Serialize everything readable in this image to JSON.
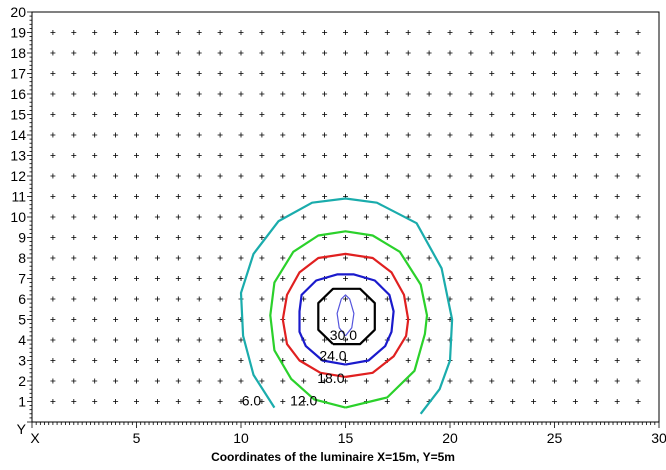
{
  "chart_data": {
    "type": "contour",
    "title": "",
    "xlabel": "Coordinates of the luminaire X=15m, Y=5m",
    "ylabel": "",
    "x_axis_name": "X",
    "y_axis_name": "Y",
    "xlim": [
      0,
      30
    ],
    "ylim": [
      0,
      20
    ],
    "x_ticks": [
      5,
      10,
      15,
      20,
      25,
      30
    ],
    "y_ticks": [
      1,
      2,
      3,
      4,
      5,
      6,
      7,
      8,
      9,
      10,
      11,
      12,
      13,
      14,
      15,
      16,
      17,
      18,
      19,
      20
    ],
    "grid": "cross markers at every 1 m",
    "luminaire": {
      "x": 15,
      "y": 5
    },
    "contours": [
      {
        "level": "6.0",
        "color": "#1aacac",
        "label_pos": {
          "x": 10.5,
          "y": 0.8
        },
        "points": [
          [
            18.6,
            0.4
          ],
          [
            19.5,
            1.6
          ],
          [
            20.0,
            3.0
          ],
          [
            20.1,
            5.0
          ],
          [
            19.6,
            7.5
          ],
          [
            18.4,
            9.7
          ],
          [
            16.5,
            10.7
          ],
          [
            15.0,
            10.9
          ],
          [
            13.4,
            10.7
          ],
          [
            11.8,
            9.8
          ],
          [
            10.6,
            8.2
          ],
          [
            10.0,
            6.3
          ],
          [
            10.1,
            4.2
          ],
          [
            10.6,
            2.3
          ],
          [
            11.6,
            0.7
          ]
        ]
      },
      {
        "level": "12.0",
        "color": "#2bd12b",
        "label_pos": {
          "x": 13.0,
          "y": 0.8
        },
        "points": [
          [
            15.0,
            0.7
          ],
          [
            17.0,
            1.2
          ],
          [
            18.3,
            2.5
          ],
          [
            18.8,
            4.3
          ],
          [
            18.9,
            5.2
          ],
          [
            18.6,
            6.7
          ],
          [
            17.6,
            8.3
          ],
          [
            16.3,
            9.1
          ],
          [
            15.0,
            9.3
          ],
          [
            13.7,
            9.1
          ],
          [
            12.5,
            8.3
          ],
          [
            11.6,
            6.8
          ],
          [
            11.4,
            5.2
          ],
          [
            11.6,
            3.5
          ],
          [
            12.4,
            2.1
          ],
          [
            13.5,
            1.1
          ],
          [
            15.0,
            0.7
          ]
        ]
      },
      {
        "level": "18.0",
        "color": "#e02020",
        "label_pos": {
          "x": 14.3,
          "y": 1.9
        },
        "points": [
          [
            15.0,
            2.2
          ],
          [
            16.3,
            2.4
          ],
          [
            17.3,
            3.2
          ],
          [
            17.9,
            4.2
          ],
          [
            18.0,
            5.0
          ],
          [
            17.8,
            6.2
          ],
          [
            17.2,
            7.3
          ],
          [
            16.3,
            8.0
          ],
          [
            15.0,
            8.2
          ],
          [
            13.7,
            8.0
          ],
          [
            12.8,
            7.3
          ],
          [
            12.2,
            6.2
          ],
          [
            12.0,
            5.0
          ],
          [
            12.2,
            3.8
          ],
          [
            12.8,
            3.0
          ],
          [
            13.8,
            2.4
          ],
          [
            15.0,
            2.2
          ]
        ]
      },
      {
        "level": "24.0",
        "color": "#1a1acc",
        "label_pos": {
          "x": 14.4,
          "y": 3.0
        },
        "points": [
          [
            15.0,
            2.8
          ],
          [
            16.1,
            3.0
          ],
          [
            16.9,
            3.7
          ],
          [
            17.2,
            4.4
          ],
          [
            17.3,
            5.4
          ],
          [
            17.1,
            6.2
          ],
          [
            16.4,
            6.9
          ],
          [
            15.4,
            7.2
          ],
          [
            14.6,
            7.2
          ],
          [
            13.6,
            6.9
          ],
          [
            12.9,
            6.2
          ],
          [
            12.8,
            5.4
          ],
          [
            12.8,
            4.4
          ],
          [
            13.1,
            3.7
          ],
          [
            13.9,
            3.0
          ],
          [
            15.0,
            2.8
          ]
        ]
      },
      {
        "level": "30.0",
        "color": "#000000",
        "label_pos": {
          "x": 14.9,
          "y": 4.0
        },
        "points": [
          [
            14.4,
            3.8
          ],
          [
            15.7,
            3.8
          ],
          [
            16.4,
            4.5
          ],
          [
            16.4,
            5.8
          ],
          [
            15.7,
            6.5
          ],
          [
            14.4,
            6.5
          ],
          [
            13.7,
            5.8
          ],
          [
            13.7,
            4.5
          ],
          [
            14.4,
            3.8
          ]
        ]
      },
      {
        "level": "",
        "color": "#5555dd",
        "label_pos": null,
        "points": [
          [
            15.0,
            4.2
          ],
          [
            15.3,
            4.6
          ],
          [
            15.4,
            5.3
          ],
          [
            15.2,
            6.0
          ],
          [
            15.0,
            6.2
          ],
          [
            14.8,
            6.0
          ],
          [
            14.6,
            5.3
          ],
          [
            14.7,
            4.6
          ],
          [
            15.0,
            4.2
          ]
        ]
      }
    ]
  }
}
